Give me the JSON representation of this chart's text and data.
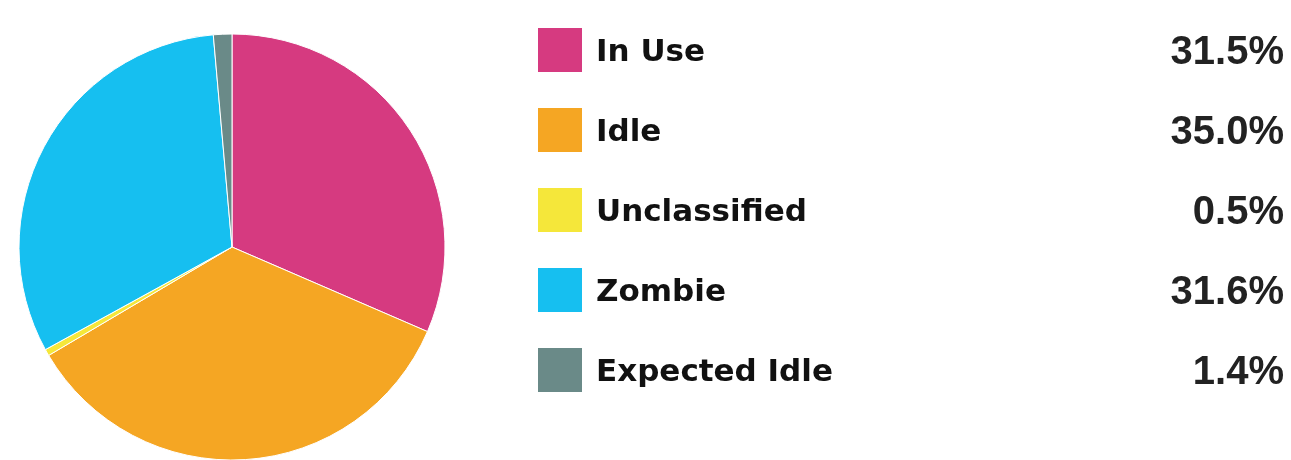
{
  "chart_data": {
    "type": "pie",
    "categories": [
      "In Use",
      "Idle",
      "Unclassified",
      "Zombie",
      "Expected Idle"
    ],
    "values": [
      31.5,
      35.0,
      0.5,
      31.6,
      1.4
    ],
    "colors": [
      "#d63a80",
      "#f5a623",
      "#f5e73a",
      "#16bff0",
      "#6a8a88"
    ],
    "value_labels": [
      "31.5%",
      "35.0%",
      "0.5%",
      "31.6%",
      "1.4%"
    ],
    "legend": "right"
  }
}
